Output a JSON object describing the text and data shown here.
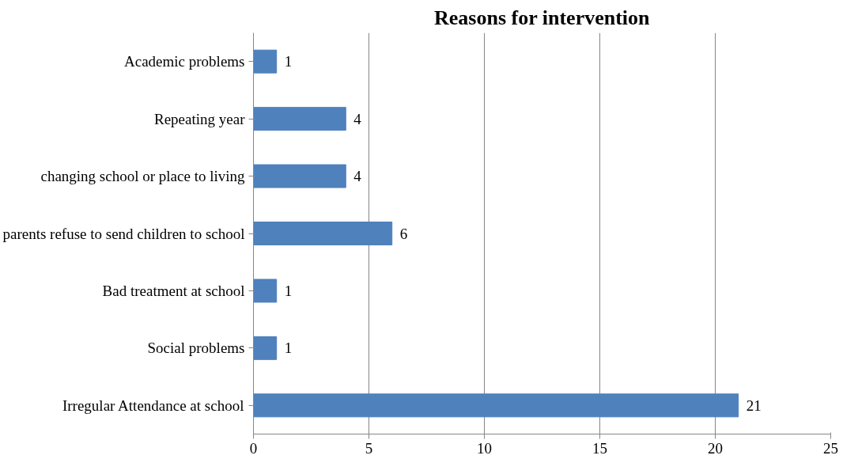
{
  "chart_data": {
    "type": "bar",
    "orientation": "horizontal",
    "title": "Reasons for intervention",
    "categories": [
      "Academic problems",
      "Repeating year",
      "changing school or place to living",
      "parents refuse to send children to school",
      "Bad treatment at school",
      "Social problems",
      "Irregular Attendance at school"
    ],
    "values": [
      1,
      4,
      4,
      6,
      1,
      1,
      21
    ],
    "color": "#4f81bd",
    "xlim": [
      0,
      25
    ],
    "xticks": [
      0,
      5,
      10,
      15,
      20,
      25
    ],
    "grid": "x",
    "data_labels": true
  }
}
